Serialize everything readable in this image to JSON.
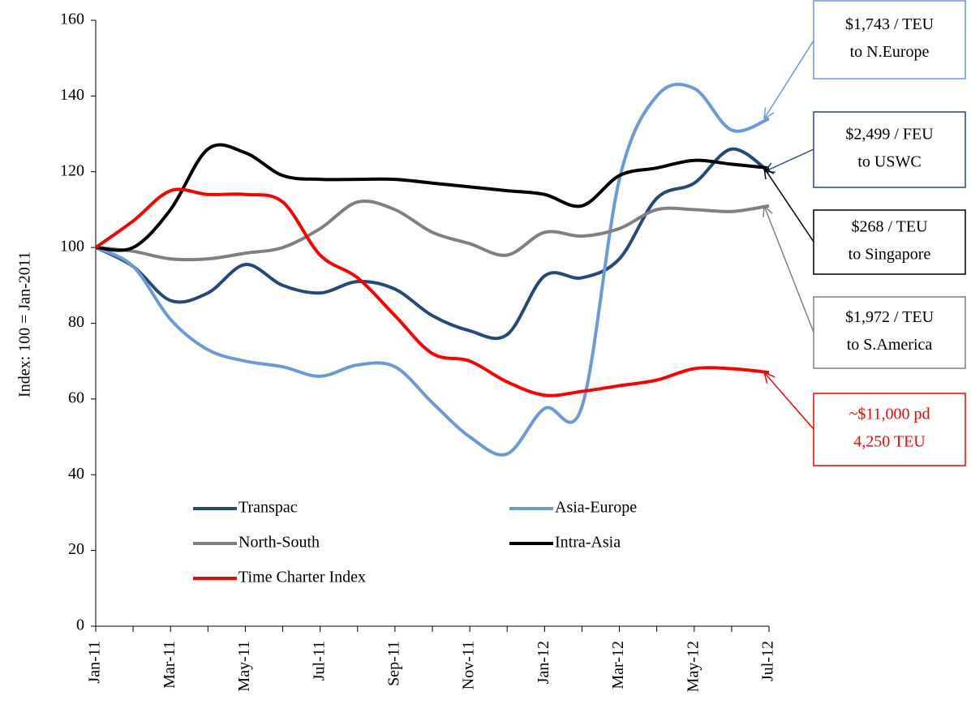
{
  "chart_data": {
    "type": "line",
    "y_label": "Index: 100 = Jan-2011",
    "categories": [
      "Jan-11",
      null,
      "Mar-11",
      null,
      "May-11",
      null,
      "Jul-11",
      null,
      "Sep-11",
      null,
      "Nov-11",
      null,
      "Jan-12",
      null,
      "Mar-12",
      null,
      "May-12",
      null,
      "Jul-12"
    ],
    "series": [
      {
        "name": "Transpac",
        "color": "#254a7a",
        "values": [
          100,
          95,
          86,
          88,
          95.5,
          90,
          88,
          91,
          89,
          82,
          78,
          77,
          92.5,
          92,
          97,
          113,
          117,
          126,
          120
        ]
      },
      {
        "name": "Asia-Europe",
        "color": "#6b9bd6",
        "values": [
          100,
          95,
          81,
          73,
          70,
          68.5,
          66,
          69,
          68.5,
          59,
          50,
          45.5,
          57.5,
          58,
          118,
          140,
          142,
          131,
          134
        ]
      },
      {
        "name": "North-South",
        "color": "#808080",
        "values": [
          100,
          99,
          97,
          97,
          98.5,
          100,
          105,
          112,
          110,
          104,
          101,
          98,
          104,
          103,
          105,
          110,
          110,
          109.5,
          111
        ]
      },
      {
        "name": "Intra-Asia",
        "color": "#000000",
        "values": [
          100,
          100,
          110,
          126,
          125,
          119,
          118,
          118,
          118,
          117,
          116,
          115,
          114,
          111,
          119,
          121,
          123,
          122,
          121
        ]
      },
      {
        "name": "Time Charter Index",
        "color": "#ff0000",
        "values": [
          100,
          107,
          115,
          114,
          114,
          112,
          98,
          92,
          82,
          72,
          70,
          64.5,
          61,
          62,
          63.5,
          65,
          68,
          68,
          67
        ]
      }
    ],
    "ylim": [
      0,
      160
    ],
    "yticks": [
      0,
      20,
      40,
      60,
      80,
      100,
      120,
      140,
      160
    ],
    "annotations": [
      {
        "lines": [
          "$1,743 / TEU",
          "to N.Europe"
        ],
        "color": "#6b9bd6",
        "text_color": "#000000",
        "series": 1
      },
      {
        "lines": [
          "$2,499 / FEU",
          "to USWC"
        ],
        "color": "#254a7a",
        "text_color": "#000000",
        "series": 0
      },
      {
        "lines": [
          "$268 / TEU",
          "to Singapore"
        ],
        "color": "#000000",
        "text_color": "#000000",
        "series": 3
      },
      {
        "lines": [
          "$1,972 / TEU",
          "to S.America"
        ],
        "color": "#808080",
        "text_color": "#000000",
        "series": 2
      },
      {
        "lines": [
          "~$11,000 pd",
          "4,250 TEU"
        ],
        "color": "#ff0000",
        "text_color": "#ff0000",
        "series": 4
      }
    ]
  }
}
